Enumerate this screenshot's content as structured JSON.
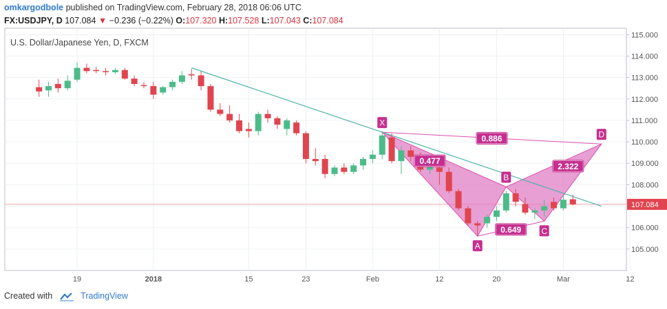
{
  "header": {
    "user": "omkargodbole",
    "published": "published on TradingView.com, February 28, 2018 06:06 UTC"
  },
  "ohlc": {
    "symbol": "FX:USDJPY, D",
    "last": "107.084",
    "arrow": "▼",
    "change": "−0.236 (−0.22%)",
    "o_label": "O:",
    "o": "107.320",
    "h_label": "H:",
    "h": "107.528",
    "l_label": "L:",
    "l": "107.043",
    "c_label": "C:",
    "c": "107.084"
  },
  "footer": {
    "created_with": "Created with",
    "brand": "TradingView"
  },
  "colors": {
    "up": "#4cbb8a",
    "down": "#e0454f",
    "pattern": "#e07fc4",
    "pattern_edge": "#d94fae",
    "label_bg": "#c52f8f",
    "trendline": "#4db3a6",
    "price_line": "#f1a5ae",
    "price_tag": "#e0454f"
  },
  "chart_data": {
    "type": "candlestick",
    "title": "U.S. Dollar/Japanese Yen, D, FXCM",
    "ylim": [
      104.0,
      115.3
    ],
    "y_ticks": [
      "115.000",
      "114.000",
      "113.000",
      "112.000",
      "111.000",
      "110.000",
      "109.000",
      "108.000",
      "107.000",
      "106.000",
      "105.000"
    ],
    "x_ticks": [
      {
        "label": "19",
        "x": 5
      },
      {
        "label": "2018",
        "x": 13
      },
      {
        "label": "15",
        "x": 23
      },
      {
        "label": "23",
        "x": 29
      },
      {
        "label": "Feb",
        "x": 36
      },
      {
        "label": "12",
        "x": 43
      },
      {
        "label": "20",
        "x": 49
      },
      {
        "label": "Mar",
        "x": 56
      },
      {
        "label": "12",
        "x": 63
      }
    ],
    "last_price": "107.084",
    "candles": [
      {
        "x": 1,
        "o": 112.55,
        "h": 112.9,
        "l": 112.1,
        "c": 112.35
      },
      {
        "x": 2,
        "o": 112.4,
        "h": 112.8,
        "l": 112.1,
        "c": 112.6
      },
      {
        "x": 3,
        "o": 112.7,
        "h": 112.95,
        "l": 112.3,
        "c": 112.5
      },
      {
        "x": 4,
        "o": 112.5,
        "h": 113.1,
        "l": 112.4,
        "c": 112.85
      },
      {
        "x": 5,
        "o": 112.9,
        "h": 113.7,
        "l": 112.8,
        "c": 113.45
      },
      {
        "x": 6,
        "o": 113.45,
        "h": 113.65,
        "l": 113.2,
        "c": 113.3
      },
      {
        "x": 7,
        "o": 113.35,
        "h": 113.5,
        "l": 113.2,
        "c": 113.3
      },
      {
        "x": 8,
        "o": 113.3,
        "h": 113.45,
        "l": 113.1,
        "c": 113.25
      },
      {
        "x": 9,
        "o": 113.25,
        "h": 113.45,
        "l": 113.15,
        "c": 113.35
      },
      {
        "x": 10,
        "o": 113.35,
        "h": 113.45,
        "l": 112.9,
        "c": 112.95
      },
      {
        "x": 11,
        "o": 112.95,
        "h": 113.1,
        "l": 112.6,
        "c": 112.7
      },
      {
        "x": 12,
        "o": 112.65,
        "h": 112.8,
        "l": 112.5,
        "c": 112.6
      },
      {
        "x": 13,
        "o": 112.6,
        "h": 112.8,
        "l": 112.0,
        "c": 112.2
      },
      {
        "x": 14,
        "o": 112.3,
        "h": 112.6,
        "l": 112.2,
        "c": 112.55
      },
      {
        "x": 15,
        "o": 112.55,
        "h": 112.9,
        "l": 112.4,
        "c": 112.8
      },
      {
        "x": 16,
        "o": 112.8,
        "h": 113.3,
        "l": 112.7,
        "c": 113.1
      },
      {
        "x": 17,
        "o": 113.15,
        "h": 113.4,
        "l": 112.9,
        "c": 113.1
      },
      {
        "x": 18,
        "o": 113.1,
        "h": 113.3,
        "l": 112.4,
        "c": 112.6
      },
      {
        "x": 19,
        "o": 112.6,
        "h": 112.7,
        "l": 111.4,
        "c": 111.5
      },
      {
        "x": 20,
        "o": 111.5,
        "h": 111.8,
        "l": 111.2,
        "c": 111.3
      },
      {
        "x": 21,
        "o": 111.3,
        "h": 111.7,
        "l": 110.9,
        "c": 111.0
      },
      {
        "x": 22,
        "o": 111.0,
        "h": 111.3,
        "l": 110.4,
        "c": 110.5
      },
      {
        "x": 23,
        "o": 110.6,
        "h": 110.9,
        "l": 110.2,
        "c": 110.5
      },
      {
        "x": 24,
        "o": 110.5,
        "h": 111.4,
        "l": 110.3,
        "c": 111.3
      },
      {
        "x": 25,
        "o": 111.3,
        "h": 111.5,
        "l": 110.9,
        "c": 111.1
      },
      {
        "x": 26,
        "o": 111.1,
        "h": 111.2,
        "l": 110.6,
        "c": 110.8
      },
      {
        "x": 27,
        "o": 110.6,
        "h": 111.1,
        "l": 110.3,
        "c": 111.0
      },
      {
        "x": 28,
        "o": 110.9,
        "h": 111.0,
        "l": 110.3,
        "c": 110.4
      },
      {
        "x": 29,
        "o": 110.4,
        "h": 110.5,
        "l": 109.0,
        "c": 109.2
      },
      {
        "x": 30,
        "o": 109.2,
        "h": 109.7,
        "l": 108.9,
        "c": 109.1
      },
      {
        "x": 31,
        "o": 109.2,
        "h": 109.4,
        "l": 108.3,
        "c": 108.5
      },
      {
        "x": 32,
        "o": 108.5,
        "h": 108.9,
        "l": 108.4,
        "c": 108.8
      },
      {
        "x": 33,
        "o": 108.8,
        "h": 109.0,
        "l": 108.5,
        "c": 108.6
      },
      {
        "x": 34,
        "o": 108.6,
        "h": 109.0,
        "l": 108.5,
        "c": 108.9
      },
      {
        "x": 35,
        "o": 108.9,
        "h": 109.3,
        "l": 108.7,
        "c": 109.2
      },
      {
        "x": 36,
        "o": 109.2,
        "h": 109.6,
        "l": 109.0,
        "c": 109.4
      },
      {
        "x": 37,
        "o": 109.4,
        "h": 110.5,
        "l": 109.2,
        "c": 110.3
      },
      {
        "x": 38,
        "o": 110.2,
        "h": 110.4,
        "l": 109.0,
        "c": 109.1
      },
      {
        "x": 39,
        "o": 109.1,
        "h": 109.8,
        "l": 108.5,
        "c": 109.6
      },
      {
        "x": 40,
        "o": 109.6,
        "h": 109.8,
        "l": 109.1,
        "c": 109.3
      },
      {
        "x": 41,
        "o": 109.3,
        "h": 109.5,
        "l": 108.6,
        "c": 108.7
      },
      {
        "x": 42,
        "o": 108.7,
        "h": 109.0,
        "l": 108.5,
        "c": 108.9
      },
      {
        "x": 43,
        "o": 108.8,
        "h": 108.9,
        "l": 108.0,
        "c": 108.6
      },
      {
        "x": 44,
        "o": 108.6,
        "h": 108.8,
        "l": 107.6,
        "c": 107.7
      },
      {
        "x": 45,
        "o": 107.7,
        "h": 107.8,
        "l": 106.8,
        "c": 106.9
      },
      {
        "x": 46,
        "o": 106.9,
        "h": 107.0,
        "l": 106.1,
        "c": 106.2
      },
      {
        "x": 47,
        "o": 106.2,
        "h": 106.3,
        "l": 105.6,
        "c": 106.1
      },
      {
        "x": 48,
        "o": 106.2,
        "h": 106.6,
        "l": 106.0,
        "c": 106.5
      },
      {
        "x": 49,
        "o": 106.5,
        "h": 107.0,
        "l": 106.3,
        "c": 106.8
      },
      {
        "x": 50,
        "o": 106.8,
        "h": 107.7,
        "l": 106.7,
        "c": 107.6
      },
      {
        "x": 51,
        "o": 107.6,
        "h": 107.8,
        "l": 107.0,
        "c": 107.2
      },
      {
        "x": 52,
        "o": 107.1,
        "h": 107.4,
        "l": 106.6,
        "c": 106.7
      },
      {
        "x": 53,
        "o": 106.7,
        "h": 106.9,
        "l": 106.4,
        "c": 106.8
      },
      {
        "x": 54,
        "o": 106.8,
        "h": 107.3,
        "l": 106.5,
        "c": 107.0
      },
      {
        "x": 55,
        "o": 107.2,
        "h": 107.4,
        "l": 106.8,
        "c": 106.9
      },
      {
        "x": 56,
        "o": 106.9,
        "h": 107.5,
        "l": 106.8,
        "c": 107.3
      },
      {
        "x": 57,
        "o": 107.32,
        "h": 107.53,
        "l": 107.04,
        "c": 107.08
      }
    ],
    "pattern_points": [
      {
        "label": "X",
        "x": 37,
        "y": 110.45
      },
      {
        "label": "A",
        "x": 47,
        "y": 105.6
      },
      {
        "label": "B",
        "x": 50,
        "y": 107.9
      },
      {
        "label": "C",
        "x": 54,
        "y": 106.3
      },
      {
        "label": "D",
        "x": 60,
        "y": 109.9
      }
    ],
    "ratios": [
      {
        "text": "0.477",
        "x": 42,
        "y": 109.1
      },
      {
        "text": "0.886",
        "x": 48.5,
        "y": 110.15
      },
      {
        "text": "2.322",
        "x": 56.5,
        "y": 108.85
      },
      {
        "text": "0.649",
        "x": 50.5,
        "y": 105.9
      }
    ],
    "trendline": {
      "x1": 17,
      "y1": 113.45,
      "x2": 60,
      "y2": 107.0
    }
  }
}
